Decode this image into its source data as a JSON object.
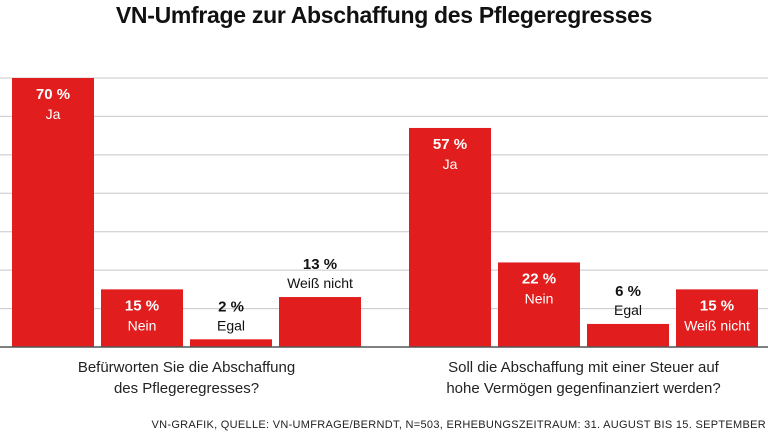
{
  "chart_data": {
    "type": "bar",
    "title": "VN-Umfrage zur Abschaffung des Pflegeregresses",
    "source": "VN-GRAFIK, QUELLE: VN-UMFRAGE/BERNDT, N=503, ERHEBUNGSZEITRAUM: 31. AUGUST BIS 15. SEPTEMBER",
    "ylim": [
      0,
      70
    ],
    "grid": true,
    "groups": [
      {
        "question_lines": [
          "Befürworten Sie die Abschaffung",
          "des Pflegeregresses?"
        ],
        "bars": [
          {
            "label": "Ja",
            "value": 70,
            "value_text": "70 %"
          },
          {
            "label": "Nein",
            "value": 15,
            "value_text": "15 %"
          },
          {
            "label": "Egal",
            "value": 2,
            "value_text": "2 %"
          },
          {
            "label": "Weiß nicht",
            "value": 13,
            "value_text": "13 %"
          }
        ]
      },
      {
        "question_lines": [
          "Soll die Abschaffung mit einer Steuer auf",
          "hohe Vermögen gegenfinanziert werden?"
        ],
        "bars": [
          {
            "label": "Ja",
            "value": 57,
            "value_text": "57 %"
          },
          {
            "label": "Nein",
            "value": 22,
            "value_text": "22 %"
          },
          {
            "label": "Egal",
            "value": 6,
            "value_text": "6 %"
          },
          {
            "label": "Weiß nicht",
            "value": 15,
            "value_text": "15 %"
          }
        ]
      }
    ],
    "colors": {
      "bar": "#e11d1d",
      "label_on_bar": "#ffffff",
      "label_above_bar": "#111111"
    }
  }
}
